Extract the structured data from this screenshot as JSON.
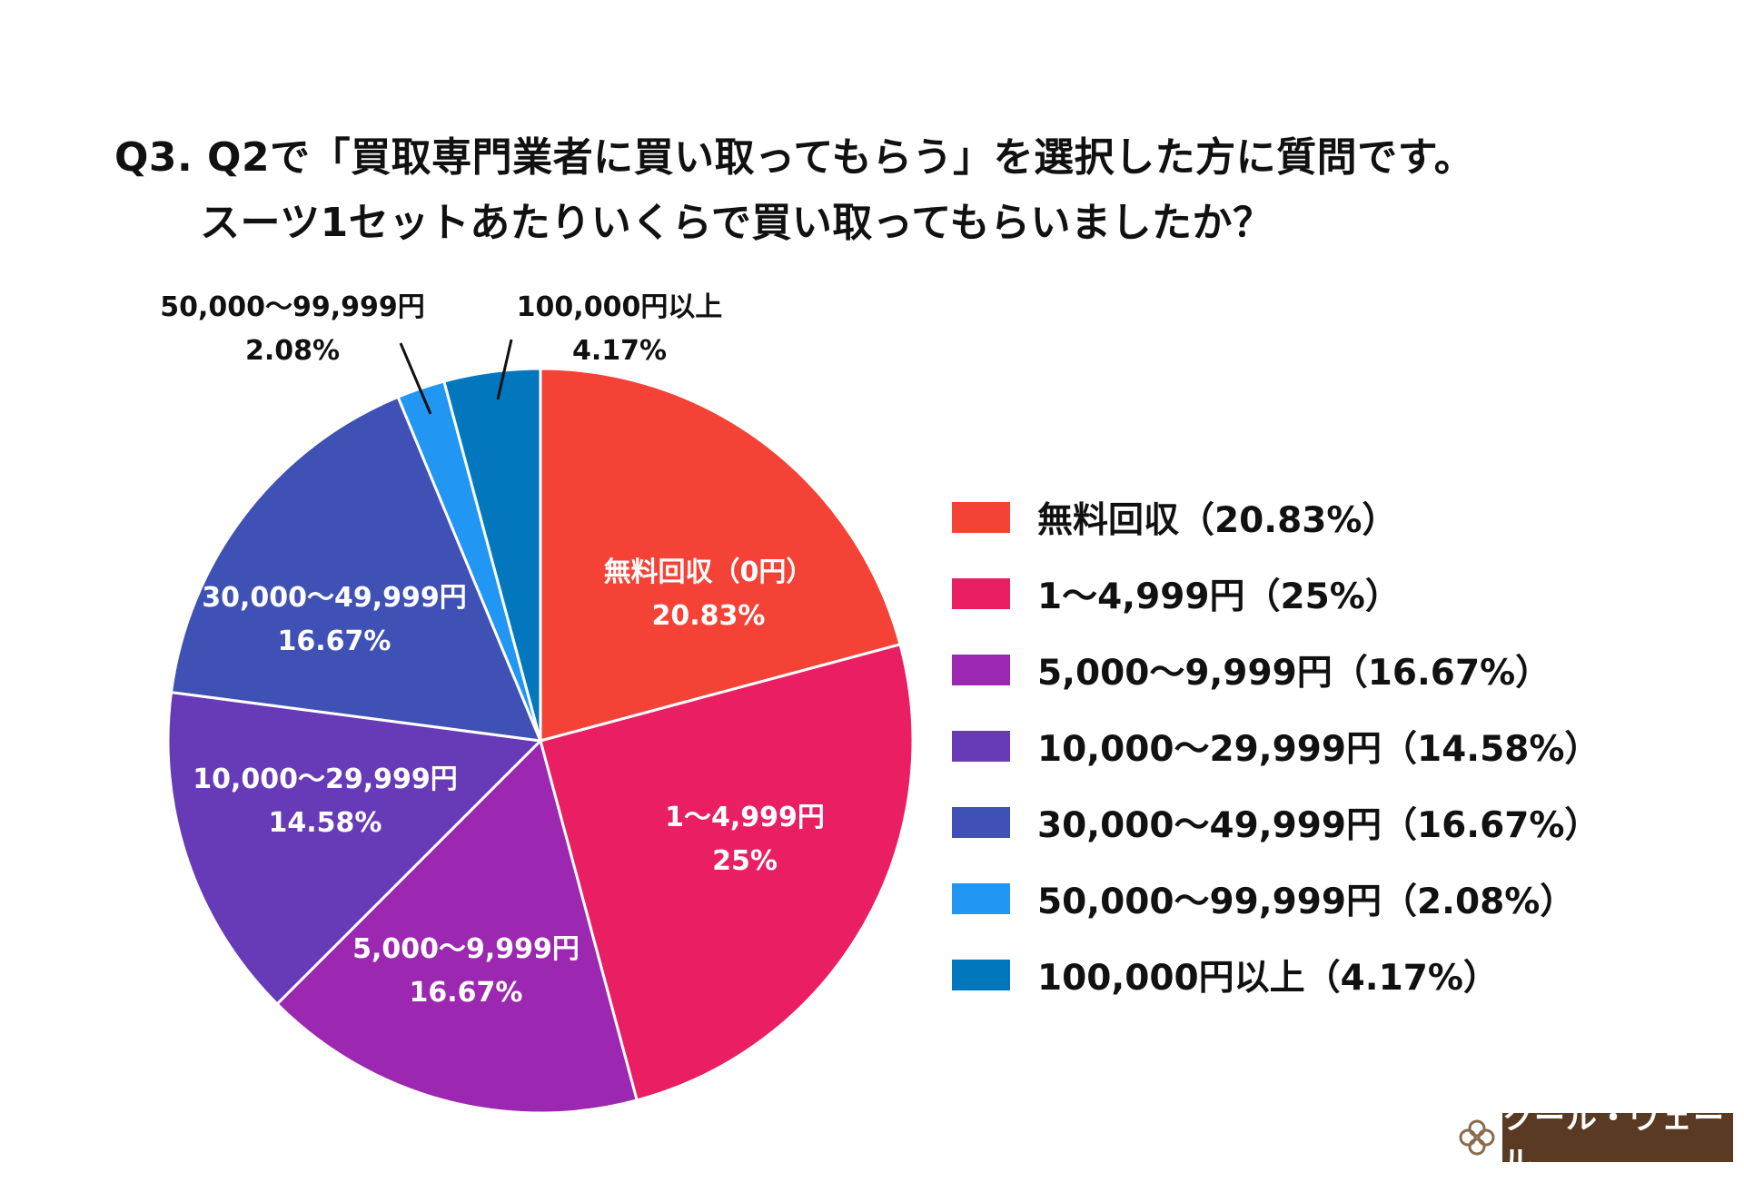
{
  "title": {
    "line1": "Q3. Q2で「買取専門業者に買い取ってもらう」を選択した方に質問です。",
    "line2": "スーツ1セットあたりいくらで買い取ってもらいましたか？"
  },
  "chart_data": {
    "type": "pie",
    "title": "Q3. Q2で「買取専門業者に買い取ってもらう」を選択した方に質問です。スーツ1セットあたりいくらで買い取ってもらいましたか？",
    "start_angle": "12 o'clock, clockwise",
    "slices": [
      {
        "name": "無料回収",
        "label": "無料回収（0円）",
        "value": 20.83,
        "value_label": "20.83%",
        "legend": "無料回収（20.83%）",
        "color": "#f44336"
      },
      {
        "name": "1〜4,999円",
        "label": "1〜4,999円",
        "value": 25,
        "value_label": "25%",
        "legend": "1〜4,999円（25%）",
        "color": "#e91e63"
      },
      {
        "name": "5,000〜9,999円",
        "label": "5,000〜9,999円",
        "value": 16.67,
        "value_label": "16.67%",
        "legend": "5,000〜9,999円（16.67%）",
        "color": "#9c27b0"
      },
      {
        "name": "10,000〜29,999円",
        "label": "10,000〜29,999円",
        "value": 14.58,
        "value_label": "14.58%",
        "legend": "10,000〜29,999円（14.58%）",
        "color": "#673ab7"
      },
      {
        "name": "30,000〜49,999円",
        "label": "30,000〜49,999円",
        "value": 16.67,
        "value_label": "16.67%",
        "legend": "30,000〜49,999円（16.67%）",
        "color": "#3f51b5"
      },
      {
        "name": "50,000〜99,999円",
        "label": "50,000〜99,999円",
        "value": 2.08,
        "value_label": "2.08%",
        "legend": "50,000〜99,999円（2.08%）",
        "color": "#2196f3"
      },
      {
        "name": "100,000円以上",
        "label": "100,000円以上",
        "value": 4.17,
        "value_label": "4.17%",
        "legend": "100,000円以上（4.17%）",
        "color": "#0277bd"
      }
    ],
    "legend_position": "right"
  },
  "logo": {
    "brand": "クール・ヴェール"
  }
}
